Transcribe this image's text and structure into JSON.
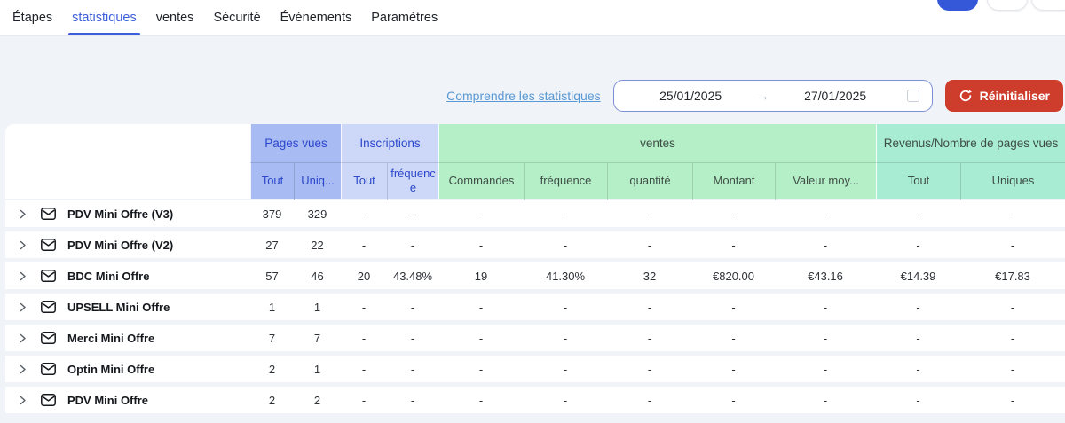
{
  "tabs": [
    {
      "label": "Étapes",
      "active": false
    },
    {
      "label": "statistiques",
      "active": true
    },
    {
      "label": "ventes",
      "active": false
    },
    {
      "label": "Sécurité",
      "active": false
    },
    {
      "label": "Événements",
      "active": false
    },
    {
      "label": "Paramètres",
      "active": false
    }
  ],
  "toolbar": {
    "help_link": "Comprendre les statistiques",
    "date_start": "25/01/2025",
    "arrow": "→",
    "date_end": "27/01/2025",
    "reset_label": "Réinitialiser"
  },
  "table": {
    "groups": [
      {
        "label": "Pages vues",
        "bg": "#a8bbf3",
        "text": "#2b47cb",
        "cols": [
          "Tout",
          "Uniq..."
        ]
      },
      {
        "label": "Inscriptions",
        "bg": "#cdd8f8",
        "text": "#2b47cb",
        "cols": [
          "Tout",
          "fréquence"
        ]
      },
      {
        "label": "ventes",
        "bg": "#b5efc7",
        "text": "#3f4d47",
        "cols": [
          "Commandes",
          "fréquence",
          "quantité",
          "Montant",
          "Valeur moy..."
        ]
      },
      {
        "label": "Revenus/Nombre de pages vues",
        "bg": "#a8ecd4",
        "text": "#3f4d47",
        "cols": [
          "Tout",
          "Uniques"
        ]
      }
    ],
    "rows": [
      {
        "label": "PDV Mini Offre (V3)",
        "values": [
          "379",
          "329",
          "-",
          "-",
          "-",
          "-",
          "-",
          "-",
          "-",
          "-",
          "-"
        ]
      },
      {
        "label": "PDV Mini Offre (V2)",
        "values": [
          "27",
          "22",
          "-",
          "-",
          "-",
          "-",
          "-",
          "-",
          "-",
          "-",
          "-"
        ]
      },
      {
        "label": "BDC Mini Offre",
        "values": [
          "57",
          "46",
          "20",
          "43.48%",
          "19",
          "41.30%",
          "32",
          "€820.00",
          "€43.16",
          "€14.39",
          "€17.83"
        ]
      },
      {
        "label": "UPSELL Mini Offre",
        "values": [
          "1",
          "1",
          "-",
          "-",
          "-",
          "-",
          "-",
          "-",
          "-",
          "-",
          "-"
        ]
      },
      {
        "label": "Merci Mini Offre",
        "values": [
          "7",
          "7",
          "-",
          "-",
          "-",
          "-",
          "-",
          "-",
          "-",
          "-",
          "-"
        ]
      },
      {
        "label": "Optin Mini Offre",
        "values": [
          "2",
          "1",
          "-",
          "-",
          "-",
          "-",
          "-",
          "-",
          "-",
          "-",
          "-"
        ]
      },
      {
        "label": "PDV Mini Offre",
        "values": [
          "2",
          "2",
          "-",
          "-",
          "-",
          "-",
          "-",
          "-",
          "-",
          "-",
          "-"
        ]
      }
    ]
  },
  "colors": {
    "accent_blue": "#3d5eda",
    "link_blue": "#5898d4",
    "reset_red": "#ce3c2c",
    "page_bg": "#f0f3f7",
    "pages_vues_bg": "#a8bbf3",
    "inscriptions_bg": "#cdd8f8",
    "ventes_bg": "#b5efc7",
    "revenus_bg": "#a8ecd4"
  }
}
